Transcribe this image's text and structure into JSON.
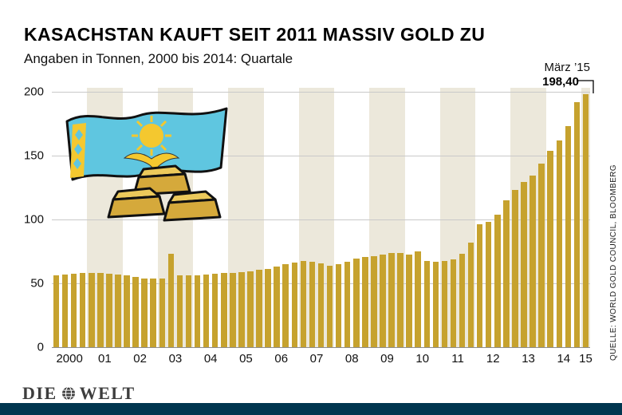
{
  "source": {
    "label": "QUELLE: WORLD GOLD COUNCIL, BLOOMBERG"
  },
  "footer": {
    "brand": [
      "DIE",
      "WELT"
    ]
  },
  "colors": {
    "bar": "#C6A22E",
    "stripe": "#ECE8DB",
    "grid": "#C9C9C9",
    "navy": "#00364F",
    "flag_blue": "#5FC6E0",
    "flag_yellow": "#F4C82F",
    "ingot_front": "#D5A93B",
    "ingot_top": "#ECC95B"
  },
  "chart_data": {
    "type": "bar",
    "title": "KASACHSTAN KAUFT SEIT 2011 MASSIV GOLD ZU",
    "subtitle": "Angaben in Tonnen, 2000 bis 2014: Quartale",
    "unit": "Tonnen",
    "ylim": [
      0,
      200
    ],
    "yticks": [
      0,
      50,
      100,
      150,
      200
    ],
    "grid": "horizontal",
    "background": "alternating vertical year stripes",
    "year_labels": [
      "2000",
      "01",
      "02",
      "03",
      "04",
      "05",
      "06",
      "07",
      "08",
      "09",
      "10",
      "11",
      "12",
      "13",
      "14",
      "15"
    ],
    "quarters_per_year": [
      4,
      4,
      4,
      4,
      4,
      4,
      4,
      4,
      4,
      4,
      4,
      4,
      4,
      4,
      4,
      1
    ],
    "values": [
      56.5,
      57,
      57.5,
      58,
      58,
      58,
      57.5,
      57,
      56,
      55,
      54,
      53.5,
      53.5,
      73,
      56,
      56.5,
      56.5,
      57,
      57.5,
      58,
      58,
      58.5,
      59.5,
      60.5,
      61.5,
      63,
      65,
      66.5,
      67.5,
      67,
      65.5,
      64,
      65,
      67,
      69.5,
      70.5,
      71.5,
      72.5,
      73.5,
      74,
      72.5,
      75,
      67.5,
      67,
      67.3,
      68.9,
      73.2,
      82,
      96.2,
      98.2,
      103.7,
      115.3,
      122.9,
      129.5,
      134.5,
      143.7,
      154,
      161.9,
      173,
      191.8,
      198.4
    ],
    "annotation": {
      "label": "März ’15",
      "value_label": "198,40",
      "value": 198.4,
      "points_to": "last-bar"
    }
  }
}
